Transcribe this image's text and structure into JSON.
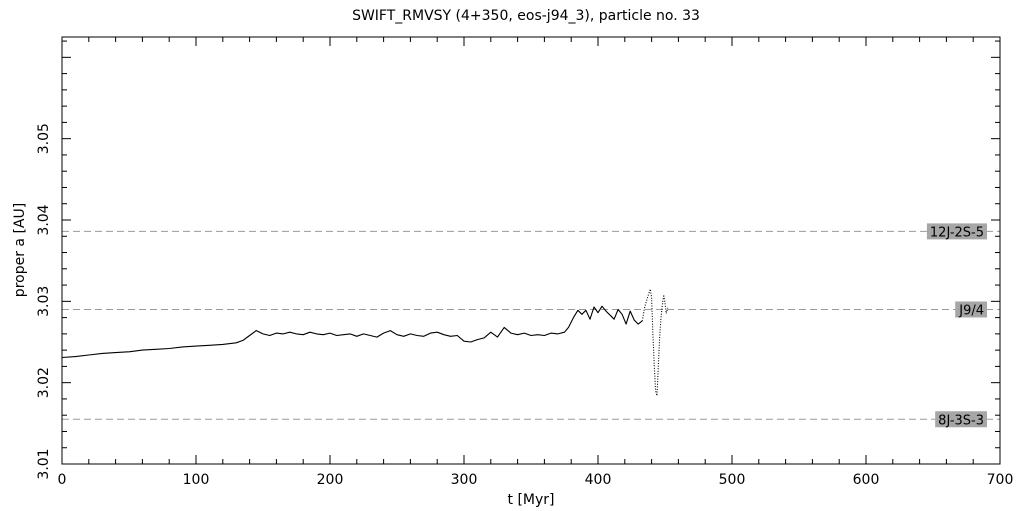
{
  "chart_data": {
    "type": "line",
    "title": "SWIFT_RMVSY (4+350, eos-j94_3), particle no. 33",
    "xlabel": "t [Myr]",
    "ylabel": "proper a [AU]",
    "xlim": [
      0,
      700
    ],
    "ylim": [
      3.01,
      3.0625
    ],
    "x_ticks": [
      0,
      100,
      200,
      300,
      400,
      500,
      600,
      700
    ],
    "x_tick_labels": [
      "0",
      "100",
      "200",
      "300",
      "400",
      "500",
      "600",
      "700"
    ],
    "y_ticks": [
      3.01,
      3.02,
      3.03,
      3.04,
      3.05
    ],
    "y_tick_labels": [
      "3.01",
      "3.02",
      "3.03",
      "3.04",
      "3.05"
    ],
    "grid": false,
    "resonances": [
      {
        "label": "12J-2S-5",
        "a": 3.0386
      },
      {
        "label": "J9/4",
        "a": 3.029
      },
      {
        "label": "8J-3S-3",
        "a": 3.0155
      }
    ],
    "series": [
      {
        "style": "solid",
        "color": "#000000",
        "x": [
          0,
          10,
          20,
          30,
          40,
          50,
          60,
          70,
          80,
          90,
          100,
          110,
          120,
          130,
          135,
          140,
          145,
          150,
          155,
          160,
          165,
          170,
          175,
          180,
          185,
          190,
          195,
          200,
          205,
          210,
          215,
          220,
          225,
          230,
          235,
          240,
          245,
          250,
          255,
          260,
          265,
          270,
          275,
          280,
          285,
          290,
          295,
          300,
          305,
          310,
          315,
          320,
          325,
          330,
          335,
          340,
          345,
          350,
          355,
          360,
          365,
          370,
          375,
          378,
          382,
          385,
          388,
          391,
          394,
          397,
          400,
          403,
          406,
          409,
          412,
          415,
          418,
          421,
          424,
          427,
          430,
          433
        ],
        "y": [
          3.0231,
          3.0232,
          3.0234,
          3.0236,
          3.0237,
          3.0238,
          3.024,
          3.0241,
          3.0242,
          3.0244,
          3.0245,
          3.0246,
          3.0247,
          3.0249,
          3.0252,
          3.0258,
          3.0264,
          3.026,
          3.0258,
          3.0261,
          3.026,
          3.0262,
          3.026,
          3.0259,
          3.0262,
          3.026,
          3.0259,
          3.0261,
          3.0258,
          3.0259,
          3.026,
          3.0257,
          3.026,
          3.0258,
          3.0256,
          3.0261,
          3.0264,
          3.0259,
          3.0257,
          3.026,
          3.0258,
          3.0257,
          3.0261,
          3.0262,
          3.0259,
          3.0257,
          3.0258,
          3.0251,
          3.025,
          3.0253,
          3.0255,
          3.0262,
          3.0256,
          3.0268,
          3.0261,
          3.0259,
          3.0261,
          3.0258,
          3.0259,
          3.0258,
          3.0261,
          3.026,
          3.0262,
          3.0268,
          3.0281,
          3.0289,
          3.0284,
          3.0289,
          3.0278,
          3.0293,
          3.0286,
          3.0294,
          3.0288,
          3.0283,
          3.0278,
          3.029,
          3.0284,
          3.0272,
          3.0288,
          3.0277,
          3.0272,
          3.0276
        ]
      },
      {
        "style": "dotted",
        "color": "#000000",
        "x": [
          433,
          435,
          437,
          439,
          440,
          441,
          442,
          443,
          444,
          445,
          446,
          447,
          448,
          449,
          450,
          451,
          452
        ],
        "y": [
          3.0276,
          3.0294,
          3.0305,
          3.0315,
          3.0305,
          3.026,
          3.022,
          3.019,
          3.0184,
          3.022,
          3.0255,
          3.028,
          3.0295,
          3.0308,
          3.0298,
          3.0285,
          3.0292
        ]
      }
    ]
  }
}
